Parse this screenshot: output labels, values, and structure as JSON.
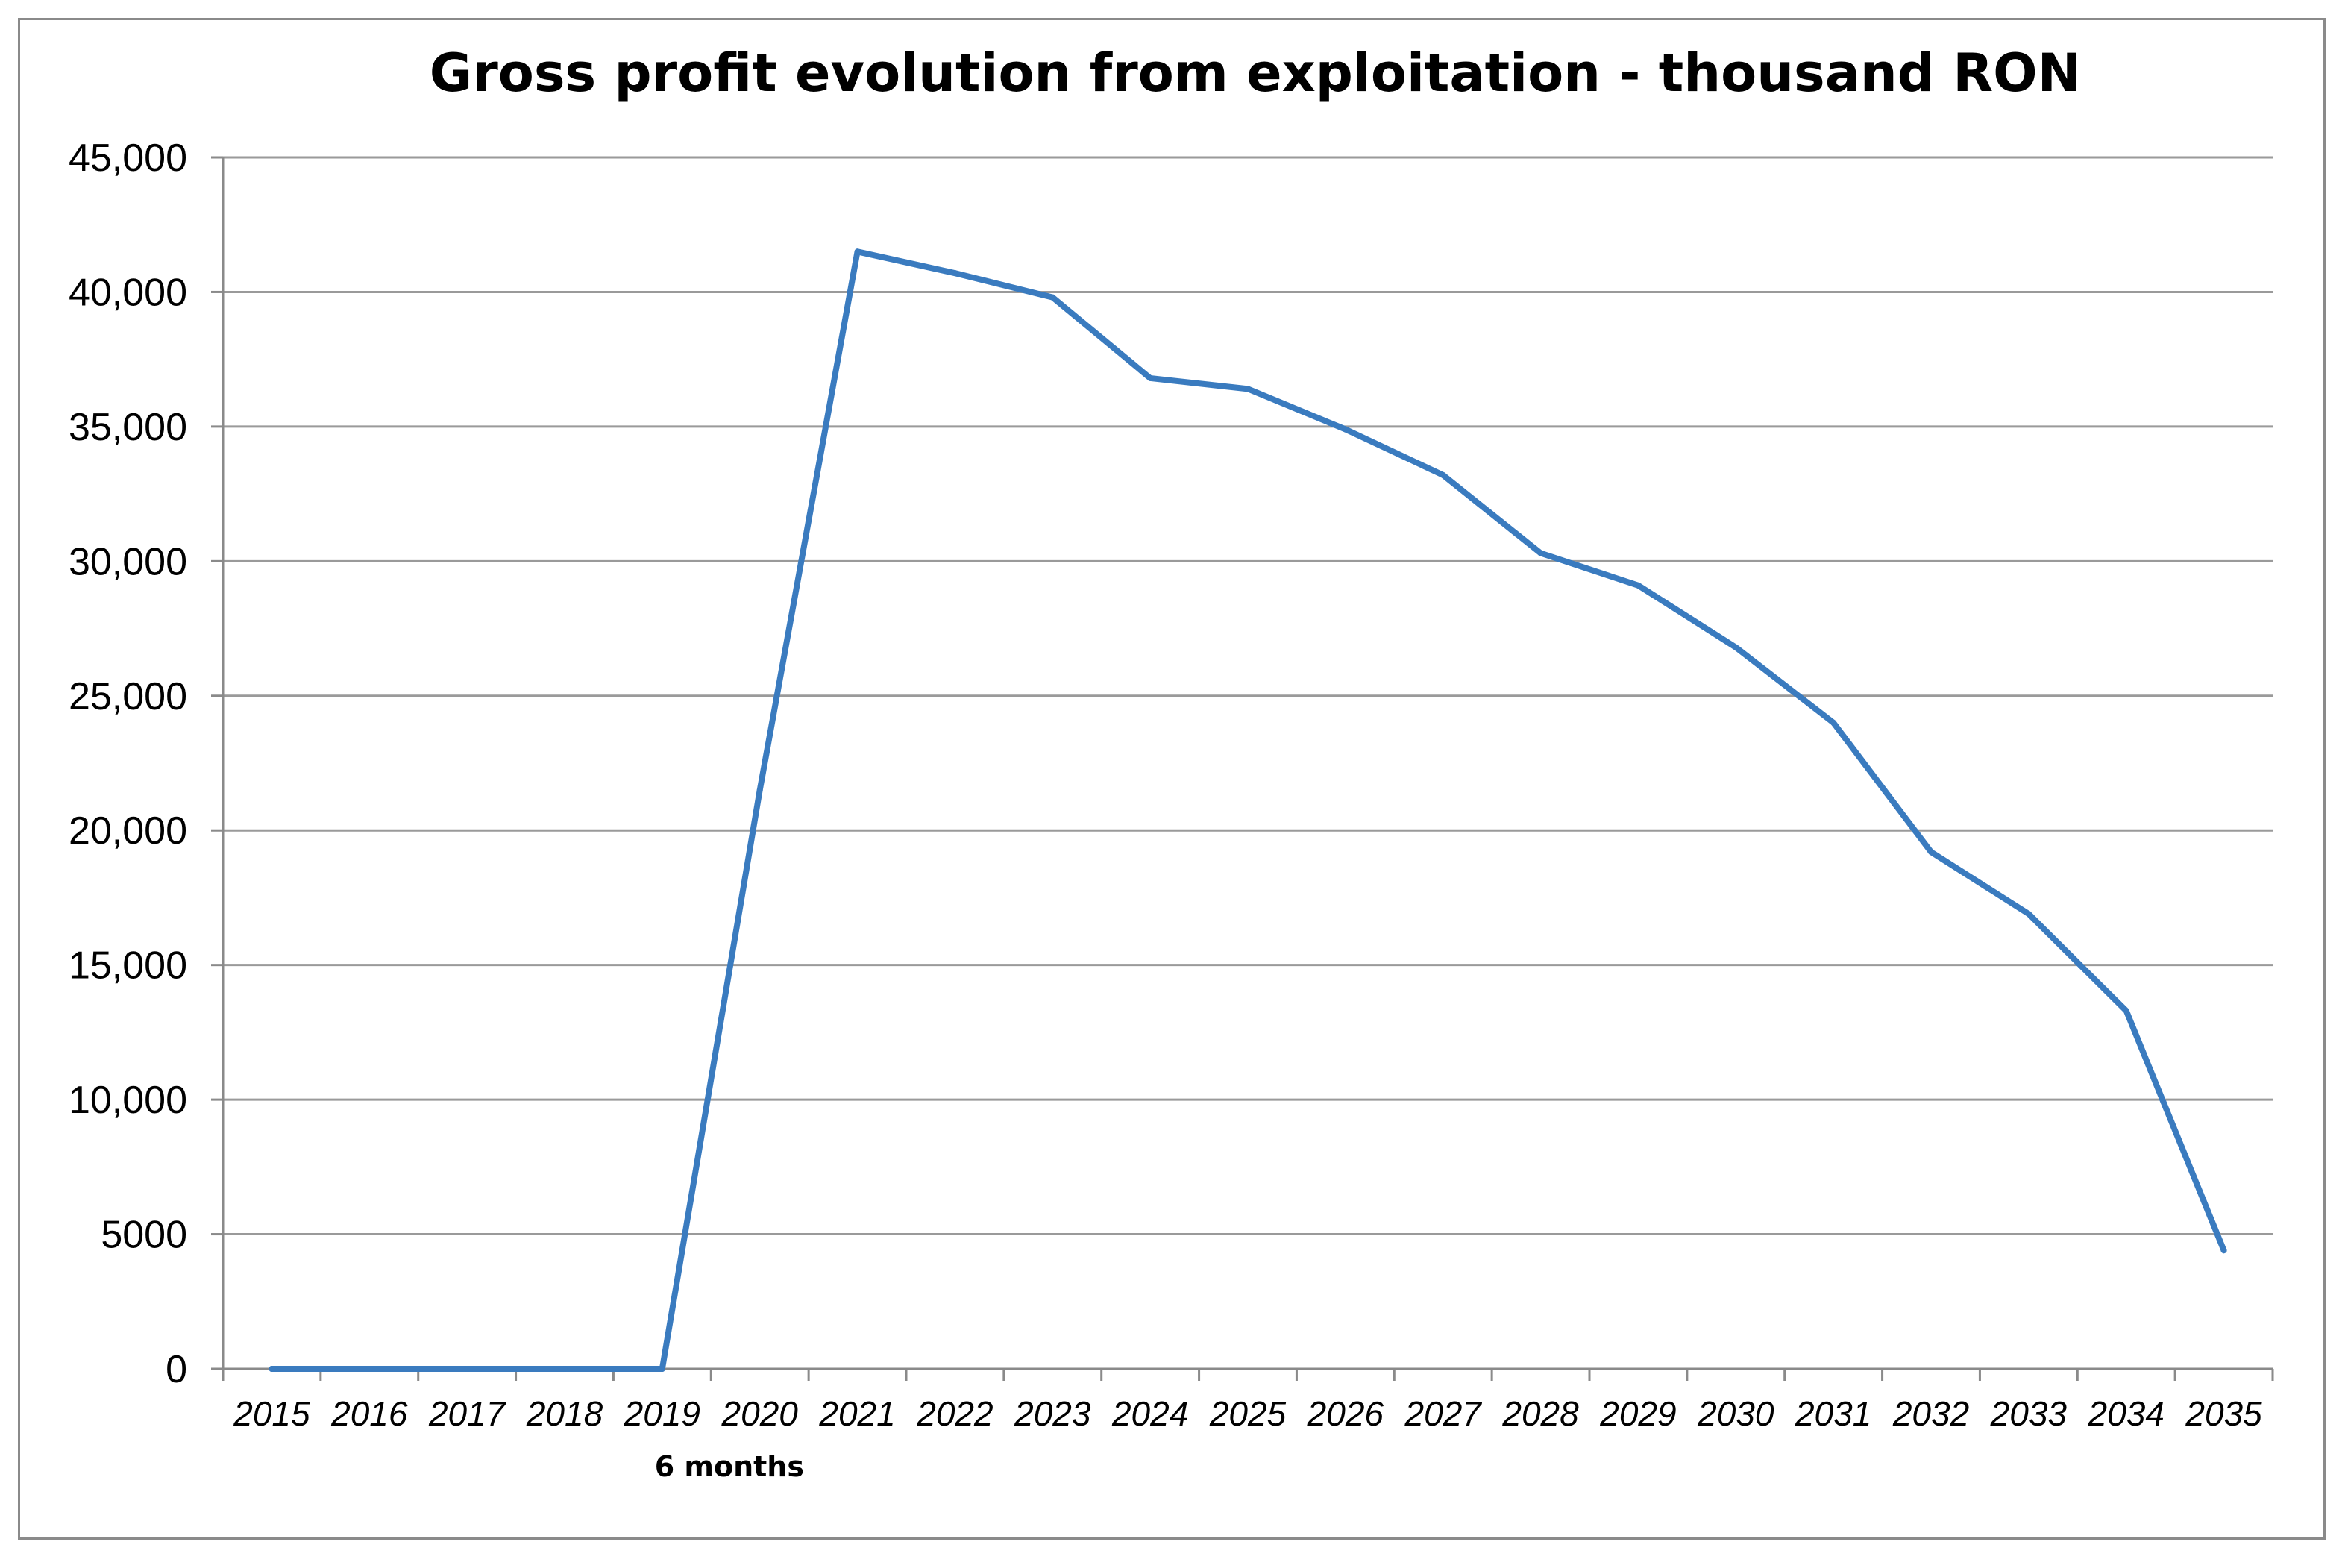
{
  "chart_data": {
    "type": "line",
    "title": "Gross profit evolution from exploitation - thousand RON",
    "xlabel": "",
    "ylabel": "",
    "ylim": [
      0,
      45000
    ],
    "grid": true,
    "line_color": "#3a7bbf",
    "categories": [
      "2015",
      "2016",
      "2017",
      "2018",
      "2019",
      "2020",
      "2021",
      "2022",
      "2023",
      "2024",
      "2025",
      "2026",
      "2027",
      "2028",
      "2029",
      "2030",
      "2031",
      "2032",
      "2033",
      "2034",
      "2035"
    ],
    "y_ticks": [
      0,
      5000,
      10000,
      15000,
      20000,
      25000,
      30000,
      35000,
      40000,
      45000
    ],
    "y_tick_labels": [
      "0",
      "5000",
      "10,000",
      "15,000",
      "20,000",
      "25,000",
      "30,000",
      "35,000",
      "40,000",
      "45,000"
    ],
    "series": [
      {
        "name": "Gross profit",
        "values": [
          0,
          0,
          0,
          0,
          0,
          21500,
          41500,
          40700,
          39800,
          36800,
          36400,
          34900,
          33200,
          30300,
          29100,
          26800,
          24000,
          19200,
          16900,
          13300,
          4400
        ]
      }
    ],
    "annotations": [
      {
        "category": "2019",
        "text": "6 months"
      }
    ]
  }
}
